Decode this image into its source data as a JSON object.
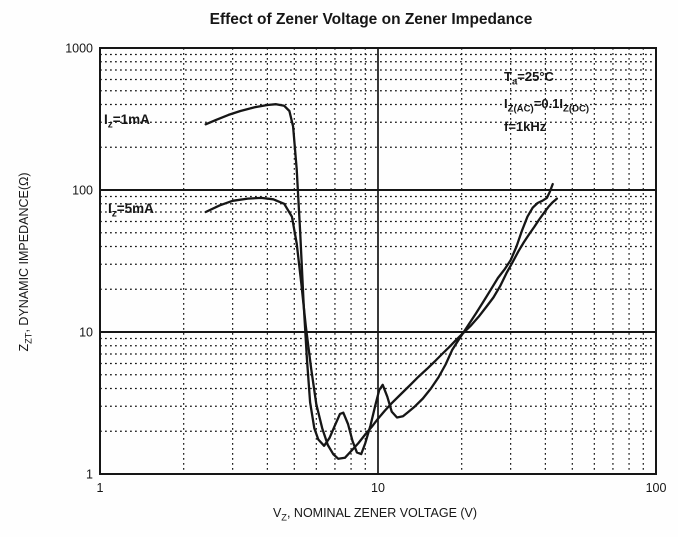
{
  "title": "Effect of Zener Voltage on Zener Impedance",
  "conditions": {
    "lines": [
      {
        "parts": [
          {
            "t": "T"
          },
          {
            "t": "a",
            "sub": true
          },
          {
            "t": "=25°C"
          }
        ]
      },
      {
        "parts": [
          {
            "t": "I"
          },
          {
            "t": "Z(AC)",
            "sub": true
          },
          {
            "t": "=0.1I"
          },
          {
            "t": "Z(DC)",
            "sub": true
          }
        ]
      },
      {
        "parts": [
          {
            "t": "f=1kHz"
          }
        ]
      }
    ]
  },
  "axes": {
    "x": {
      "label_parts": [
        {
          "t": "V"
        },
        {
          "t": "Z",
          "sub": true
        },
        {
          "t": ", NOMINAL ZENER VOLTAGE (V)"
        }
      ],
      "scale": "log",
      "min": 1,
      "max": 100,
      "ticks": [
        {
          "v": 1,
          "label": "1"
        },
        {
          "v": 10,
          "label": "10"
        },
        {
          "v": 100,
          "label": "100"
        }
      ]
    },
    "y": {
      "label_parts": [
        {
          "t": "Z"
        },
        {
          "t": "ZT",
          "sub": true
        },
        {
          "t": ", DYNAMIC IMPEDANCE(Ω)"
        }
      ],
      "scale": "log",
      "min": 1,
      "max": 1000,
      "ticks": [
        {
          "v": 1,
          "label": "1"
        },
        {
          "v": 10,
          "label": "10"
        },
        {
          "v": 100,
          "label": "100"
        },
        {
          "v": 1000,
          "label": "1000"
        }
      ]
    }
  },
  "chart_data": {
    "type": "line",
    "title": "Effect of Zener Voltage on Zener Impedance",
    "xlabel": "VZ, NOMINAL ZENER VOLTAGE (V)",
    "ylabel": "ZZT, DYNAMIC IMPEDANCE(Ω)",
    "xscale": "log",
    "yscale": "log",
    "xlim": [
      1,
      100
    ],
    "ylim": [
      1,
      1000
    ],
    "grid": {
      "minor": "dotted log decades",
      "major_solid_x": [
        10
      ],
      "major_solid_y": [
        10,
        100
      ]
    },
    "legend_position": "labels near curve start, left side",
    "line_color": "#161616",
    "series": [
      {
        "name": "IZ=1mA",
        "label_parts": [
          {
            "t": "I"
          },
          {
            "t": "z",
            "sub": true
          },
          {
            "t": "=1mA"
          }
        ],
        "points": [
          [
            2.4,
            290
          ],
          [
            2.6,
            310
          ],
          [
            2.9,
            338
          ],
          [
            3.2,
            360
          ],
          [
            3.6,
            382
          ],
          [
            4.0,
            397
          ],
          [
            4.3,
            402
          ],
          [
            4.6,
            392
          ],
          [
            4.8,
            360
          ],
          [
            4.95,
            280
          ],
          [
            5.1,
            140
          ],
          [
            5.25,
            50
          ],
          [
            5.4,
            16
          ],
          [
            5.55,
            6.5
          ],
          [
            5.7,
            3.2
          ],
          [
            5.9,
            2.1
          ],
          [
            6.1,
            1.75
          ],
          [
            6.4,
            1.58
          ],
          [
            6.7,
            1.8
          ],
          [
            7.0,
            2.2
          ],
          [
            7.3,
            2.65
          ],
          [
            7.5,
            2.7
          ],
          [
            7.8,
            2.25
          ],
          [
            8.1,
            1.7
          ],
          [
            8.4,
            1.42
          ],
          [
            8.7,
            1.38
          ],
          [
            9.0,
            1.65
          ],
          [
            9.4,
            2.2
          ],
          [
            9.8,
            3.1
          ],
          [
            10.1,
            3.9
          ],
          [
            10.4,
            4.25
          ],
          [
            10.8,
            3.5
          ],
          [
            11.2,
            2.75
          ],
          [
            11.7,
            2.5
          ],
          [
            12.3,
            2.55
          ],
          [
            12.9,
            2.75
          ],
          [
            13.6,
            3.0
          ],
          [
            14.5,
            3.4
          ],
          [
            15.5,
            4.0
          ],
          [
            16.5,
            4.8
          ],
          [
            17.5,
            5.9
          ],
          [
            18.5,
            7.5
          ],
          [
            19.5,
            8.8
          ],
          [
            21,
            11
          ],
          [
            22.5,
            13.5
          ],
          [
            24,
            16.5
          ],
          [
            25.5,
            20
          ],
          [
            27,
            24
          ],
          [
            28.5,
            27.5
          ],
          [
            30,
            32
          ],
          [
            31.5,
            40
          ],
          [
            33,
            52
          ],
          [
            34.5,
            65
          ],
          [
            36,
            75
          ],
          [
            37.5,
            81
          ],
          [
            39,
            84
          ],
          [
            40.5,
            88
          ],
          [
            41.5,
            97
          ],
          [
            42.5,
            110
          ]
        ]
      },
      {
        "name": "IZ=5mA",
        "label_parts": [
          {
            "t": "I"
          },
          {
            "t": "z",
            "sub": true
          },
          {
            "t": "=5mA"
          }
        ],
        "points": [
          [
            2.4,
            70
          ],
          [
            2.7,
            78
          ],
          [
            3.0,
            84
          ],
          [
            3.4,
            87
          ],
          [
            3.8,
            88
          ],
          [
            4.2,
            86
          ],
          [
            4.6,
            80
          ],
          [
            4.9,
            65
          ],
          [
            5.1,
            42
          ],
          [
            5.3,
            22
          ],
          [
            5.5,
            11
          ],
          [
            5.75,
            5.5
          ],
          [
            6.0,
            3.1
          ],
          [
            6.3,
            2.1
          ],
          [
            6.6,
            1.6
          ],
          [
            6.9,
            1.38
          ],
          [
            7.2,
            1.28
          ],
          [
            7.6,
            1.3
          ],
          [
            8.0,
            1.45
          ],
          [
            8.5,
            1.65
          ],
          [
            9.0,
            1.9
          ],
          [
            9.5,
            2.15
          ],
          [
            10.0,
            2.45
          ],
          [
            10.6,
            2.8
          ],
          [
            11.2,
            3.15
          ],
          [
            12,
            3.6
          ],
          [
            13,
            4.2
          ],
          [
            14,
            4.85
          ],
          [
            15,
            5.5
          ],
          [
            16,
            6.2
          ],
          [
            17,
            7.0
          ],
          [
            18,
            7.8
          ],
          [
            19,
            8.7
          ],
          [
            20,
            9.6
          ],
          [
            21.5,
            11
          ],
          [
            23,
            12.8
          ],
          [
            24.5,
            15
          ],
          [
            26,
            17.5
          ],
          [
            27.5,
            21
          ],
          [
            29,
            26
          ],
          [
            30.5,
            31
          ],
          [
            32,
            37
          ],
          [
            33.5,
            43
          ],
          [
            35,
            49
          ],
          [
            36.5,
            55
          ],
          [
            38,
            62
          ],
          [
            39.5,
            69
          ],
          [
            41,
            76
          ],
          [
            42.5,
            82
          ],
          [
            44,
            87
          ]
        ]
      }
    ]
  }
}
